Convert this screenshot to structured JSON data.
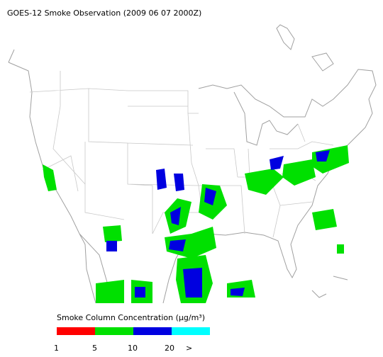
{
  "title": "GOES-12 Smoke Observation (2009 06 07  2000Z)",
  "legend": {
    "title": "Smoke Column Concentration (μg/m³)",
    "colors": [
      "#ff0000",
      "#00e000",
      "#0000e0",
      "#00ffff"
    ],
    "labels": [
      "1",
      "5",
      "10",
      "20",
      ">"
    ]
  }
}
